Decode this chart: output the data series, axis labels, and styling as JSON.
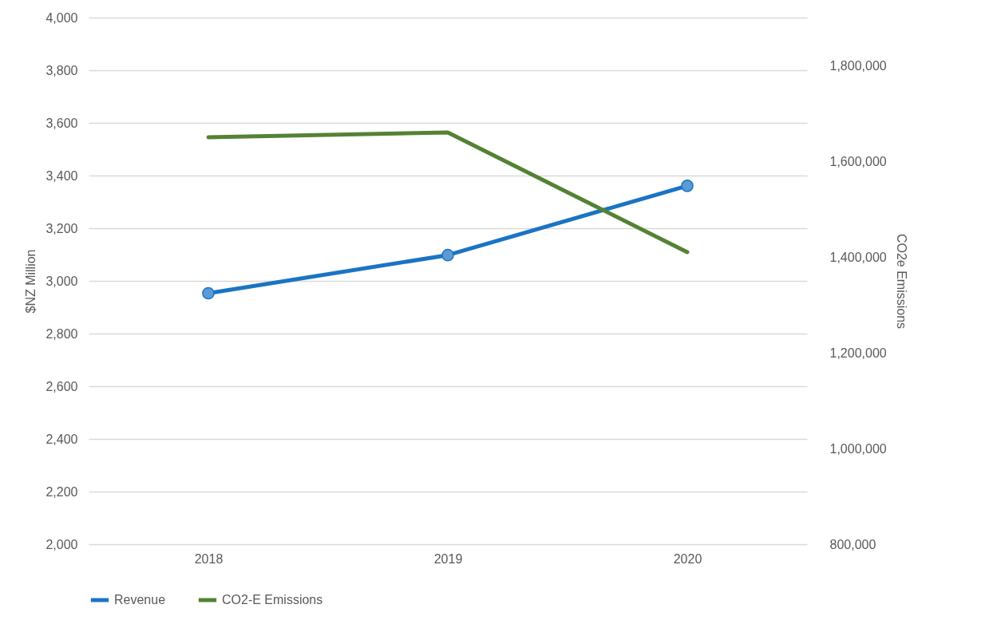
{
  "chart_data": {
    "type": "line",
    "categories": [
      "2018",
      "2019",
      "2020"
    ],
    "ylabel": "$NZ Million",
    "y2label": "CO2e Emissions",
    "ylim": [
      2000,
      4000
    ],
    "yticks": [
      {
        "value": 2000,
        "label": "2,000"
      },
      {
        "value": 2200,
        "label": "2,200"
      },
      {
        "value": 2400,
        "label": "2,400"
      },
      {
        "value": 2600,
        "label": "2,600"
      },
      {
        "value": 2800,
        "label": "2,800"
      },
      {
        "value": 3000,
        "label": "3,000"
      },
      {
        "value": 3200,
        "label": "3,200"
      },
      {
        "value": 3400,
        "label": "3,400"
      },
      {
        "value": 3600,
        "label": "3,600"
      },
      {
        "value": 3800,
        "label": "3,800"
      },
      {
        "value": 4000,
        "label": "4,000"
      }
    ],
    "y2lim": [
      800000,
      1900000
    ],
    "y2ticks": [
      {
        "value": 800000,
        "label": "800,000"
      },
      {
        "value": 1000000,
        "label": "1,000,000"
      },
      {
        "value": 1200000,
        "label": "1,200,000"
      },
      {
        "value": 1400000,
        "label": "1,400,000"
      },
      {
        "value": 1600000,
        "label": "1,600,000"
      },
      {
        "value": 1800000,
        "label": "1,800,000"
      }
    ],
    "grid": "y",
    "legend": "bottom",
    "series": [
      {
        "name": "Revenue",
        "color": "#1a74c4",
        "values": [
          2953,
          3098,
          3361
        ],
        "marker": "circle"
      },
      {
        "name": "CO2-E Emissions",
        "color": "#548235",
        "values": [
          1650000,
          1660000,
          1410000
        ],
        "axis": "y2",
        "marker": "none"
      }
    ]
  }
}
